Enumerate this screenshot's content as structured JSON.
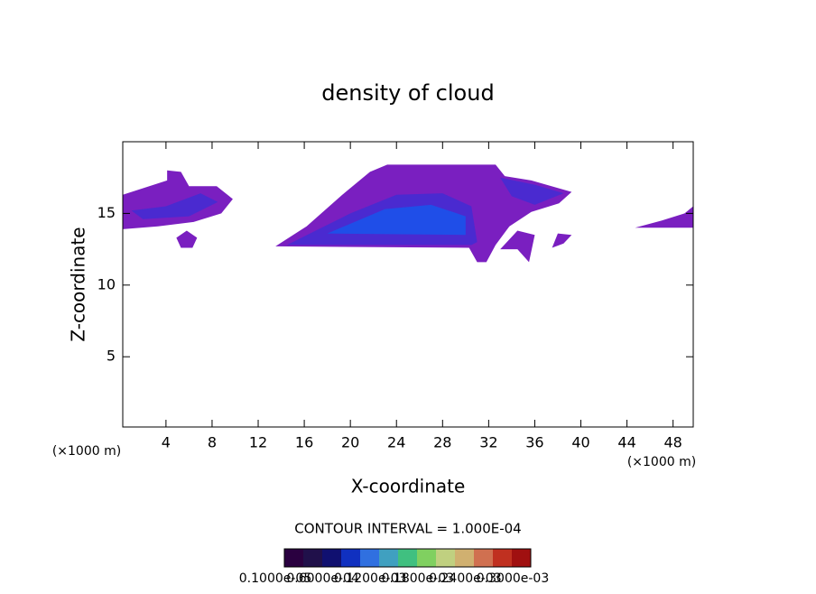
{
  "chart_data": {
    "type": "contour",
    "title": "density of cloud",
    "xlabel": "X-coordinate",
    "ylabel": "Z-coordinate",
    "x_unit": "(×1000 m)",
    "x_unit_right": "(×1000 m)",
    "xlim": [
      0.25,
      49.75
    ],
    "ylim": [
      0.1,
      20
    ],
    "xticks": [
      4,
      8,
      12,
      16,
      20,
      24,
      28,
      32,
      36,
      40,
      44,
      48
    ],
    "yticks": [
      5,
      10,
      15
    ],
    "contour_interval": "CONTOUR INTERVAL = 1.000E-04",
    "regions": [
      {
        "level": 1e-05,
        "color": "#7a1fc0",
        "points": [
          [
            13.5,
            12.7
          ],
          [
            16.2,
            14.1
          ],
          [
            19.3,
            16.3
          ],
          [
            21.7,
            17.9
          ],
          [
            23.2,
            18.4
          ],
          [
            32.6,
            18.4
          ],
          [
            33.4,
            17.6
          ],
          [
            35.7,
            17.3
          ],
          [
            39.2,
            16.5
          ],
          [
            38.1,
            15.7
          ],
          [
            35.7,
            15.1
          ],
          [
            33.8,
            14.1
          ],
          [
            32.6,
            12.8
          ],
          [
            31.8,
            11.6
          ],
          [
            31.0,
            11.6
          ],
          [
            30.3,
            12.6
          ]
        ]
      },
      {
        "level": 1e-05,
        "color": "#7a1fc0",
        "points": [
          [
            33,
            12.5
          ],
          [
            34.5,
            13.8
          ],
          [
            36,
            13.5
          ],
          [
            35.5,
            11.6
          ],
          [
            34.5,
            12.5
          ]
        ]
      },
      {
        "level": 1e-05,
        "color": "#7a1fc0",
        "points": [
          [
            37.5,
            12.6
          ],
          [
            38,
            13.6
          ],
          [
            39.2,
            13.5
          ],
          [
            38.5,
            12.9
          ]
        ]
      },
      {
        "level": 1e-05,
        "color": "#7a1fc0",
        "points": [
          [
            0.25,
            16.3
          ],
          [
            4.1,
            17.3
          ],
          [
            4.1,
            18.0
          ],
          [
            5.3,
            17.9
          ],
          [
            6.0,
            16.9
          ],
          [
            8.4,
            16.9
          ],
          [
            9.8,
            16.0
          ],
          [
            8.8,
            15.0
          ],
          [
            6.4,
            14.4
          ],
          [
            3.3,
            14.1
          ],
          [
            0.25,
            13.9
          ]
        ]
      },
      {
        "level": 1e-05,
        "color": "#7a1fc0",
        "points": [
          [
            4.9,
            13.3
          ],
          [
            5.8,
            13.8
          ],
          [
            6.7,
            13.3
          ],
          [
            6.3,
            12.6
          ],
          [
            5.3,
            12.6
          ]
        ]
      },
      {
        "level": 1e-05,
        "color": "#7a1fc0",
        "points": [
          [
            44.7,
            14.0
          ],
          [
            47,
            14.5
          ],
          [
            49,
            15.0
          ],
          [
            49.75,
            15.5
          ],
          [
            49.75,
            14.0
          ]
        ]
      },
      {
        "level": 6e-05,
        "color": "#4a2ad0",
        "points": [
          [
            14.5,
            12.8
          ],
          [
            20,
            15
          ],
          [
            24,
            16.3
          ],
          [
            28,
            16.4
          ],
          [
            30.5,
            15.5
          ],
          [
            31,
            13
          ],
          [
            30.5,
            12.8
          ]
        ]
      },
      {
        "level": 6e-05,
        "color": "#4a2ad0",
        "points": [
          [
            1,
            15.2
          ],
          [
            4,
            15.5
          ],
          [
            7,
            16.4
          ],
          [
            8.5,
            15.8
          ],
          [
            6,
            14.8
          ],
          [
            2,
            14.6
          ]
        ]
      },
      {
        "level": 6e-05,
        "color": "#4a2ad0",
        "points": [
          [
            33,
            17.5
          ],
          [
            36,
            17
          ],
          [
            38.5,
            16.4
          ],
          [
            36,
            15.6
          ],
          [
            34,
            16.2
          ]
        ]
      },
      {
        "level": 0.00012,
        "color": "#1f4ee8",
        "points": [
          [
            18,
            13.6
          ],
          [
            23,
            15.3
          ],
          [
            27,
            15.6
          ],
          [
            30,
            14.8
          ],
          [
            30,
            13.5
          ]
        ]
      }
    ],
    "colorbar": {
      "colors": [
        "#2a0040",
        "#20104a",
        "#101070",
        "#1030c0",
        "#3070e0",
        "#40a0c0",
        "#40c080",
        "#80d060",
        "#c0d080",
        "#d0b070",
        "#d07050",
        "#c03020",
        "#a01010"
      ],
      "labels": [
        "0.1000e-05",
        "0.6000e-04",
        "0.1200e-03",
        "0.1800e-03",
        "0.2400e-03",
        "0.3000e-03"
      ]
    }
  }
}
